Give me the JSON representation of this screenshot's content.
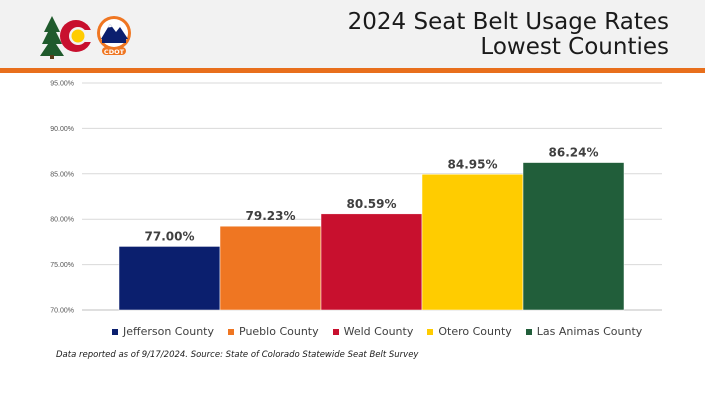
{
  "header": {
    "title_line1": "2024 Seat Belt Usage Rates",
    "title_line2": "Lowest Counties",
    "logo_text": "CDOT",
    "rule_color": "#e86f1c"
  },
  "chart_data": {
    "type": "bar",
    "categories": [
      "Jefferson County",
      "Pueblo County",
      "Weld County",
      "Otero County",
      "Las Animas County"
    ],
    "values": [
      77.0,
      79.23,
      80.59,
      84.95,
      86.24
    ],
    "data_labels": [
      "77.00%",
      "79.23%",
      "80.59%",
      "84.95%",
      "86.24%"
    ],
    "colors": [
      "#0b1f6e",
      "#ef7622",
      "#c8102e",
      "#ffcc00",
      "#215e3a"
    ],
    "ylim": [
      70,
      95
    ],
    "yticks": [
      70,
      75,
      80,
      85,
      90,
      95
    ],
    "ytick_labels": [
      "70.00%",
      "75.00%",
      "80.00%",
      "85.00%",
      "90.00%",
      "95.00%"
    ],
    "grid": true,
    "legend_position": "bottom",
    "xlabel": "",
    "ylabel": ""
  },
  "footnote": "Data reported as of 9/17/2024. Source: State of Colorado Statewide Seat Belt Survey"
}
